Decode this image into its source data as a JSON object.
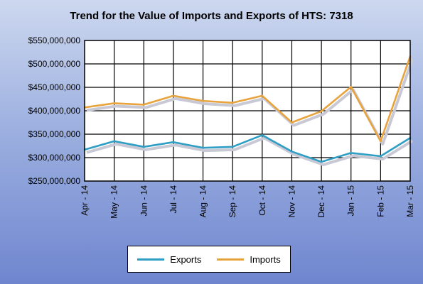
{
  "chart_data": {
    "type": "line",
    "title": "Trend for the Value of Imports and Exports of HTS: 7318",
    "xlabel": "",
    "ylabel": "",
    "categories": [
      "Apr - 14",
      "May - 14",
      "Jun - 14",
      "Jul - 14",
      "Aug - 14",
      "Sep - 14",
      "Oct - 14",
      "Nov - 14",
      "Dec - 14",
      "Jan - 15",
      "Feb - 15",
      "Mar - 15"
    ],
    "yticks": [
      "$250,000,000",
      "$300,000,000",
      "$350,000,000",
      "$400,000,000",
      "$450,000,000",
      "$500,000,000",
      "$550,000,000"
    ],
    "ylim": [
      250000000,
      550000000
    ],
    "grid": true,
    "legend_position": "bottom",
    "series": [
      {
        "name": "Exports",
        "color": "#2e9ec4",
        "values": [
          317000000,
          335000000,
          323000000,
          333000000,
          321000000,
          323000000,
          348000000,
          313000000,
          291000000,
          310000000,
          303000000,
          342000000
        ]
      },
      {
        "name": "Imports",
        "color": "#e8a33c",
        "values": [
          407000000,
          416000000,
          413000000,
          432000000,
          421000000,
          417000000,
          432000000,
          375000000,
          399000000,
          451000000,
          335000000,
          516000000
        ]
      }
    ]
  }
}
